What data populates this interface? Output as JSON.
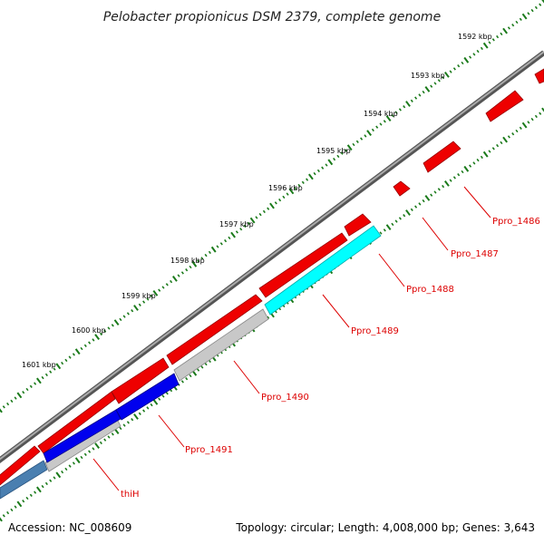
{
  "title": "Pelobacter propionicus DSM 2379, complete genome",
  "footer": {
    "accession": "Accession: NC_008609",
    "summary": "Topology: circular; Length: 4,008,000 bp; Genes: 3,643"
  },
  "ticks": [
    {
      "label": "1592 kbp",
      "kbp": 1592
    },
    {
      "label": "1593 kbp",
      "kbp": 1593
    },
    {
      "label": "1594 kbp",
      "kbp": 1594
    },
    {
      "label": "1595 kbp",
      "kbp": 1595
    },
    {
      "label": "1596 kbp",
      "kbp": 1596
    },
    {
      "label": "1597 kbp",
      "kbp": 1597
    },
    {
      "label": "1598 kbp",
      "kbp": 1598
    },
    {
      "label": "1599 kbp",
      "kbp": 1599
    },
    {
      "label": "1600 kbp",
      "kbp": 1600
    },
    {
      "label": "1601 kbp",
      "kbp": 1601
    }
  ],
  "gene_labels": [
    {
      "text": "Ppro_1486"
    },
    {
      "text": "Ppro_1487"
    },
    {
      "text": "Ppro_1488"
    },
    {
      "text": "Ppro_1489"
    },
    {
      "text": "Ppro_1490"
    },
    {
      "text": "Ppro_1491"
    },
    {
      "text": "thiH"
    }
  ],
  "colors": {
    "backbone": "#7a7a7a",
    "cds_forward": "#ff0000",
    "cds_highlight_cyan": "#00ffff",
    "cds_blue": "#0000ee",
    "cds_gray": "#c0c0c0",
    "cds_steel": "#4682b4",
    "tick_green": "#1a7a1a",
    "label_red": "#dd0000"
  }
}
